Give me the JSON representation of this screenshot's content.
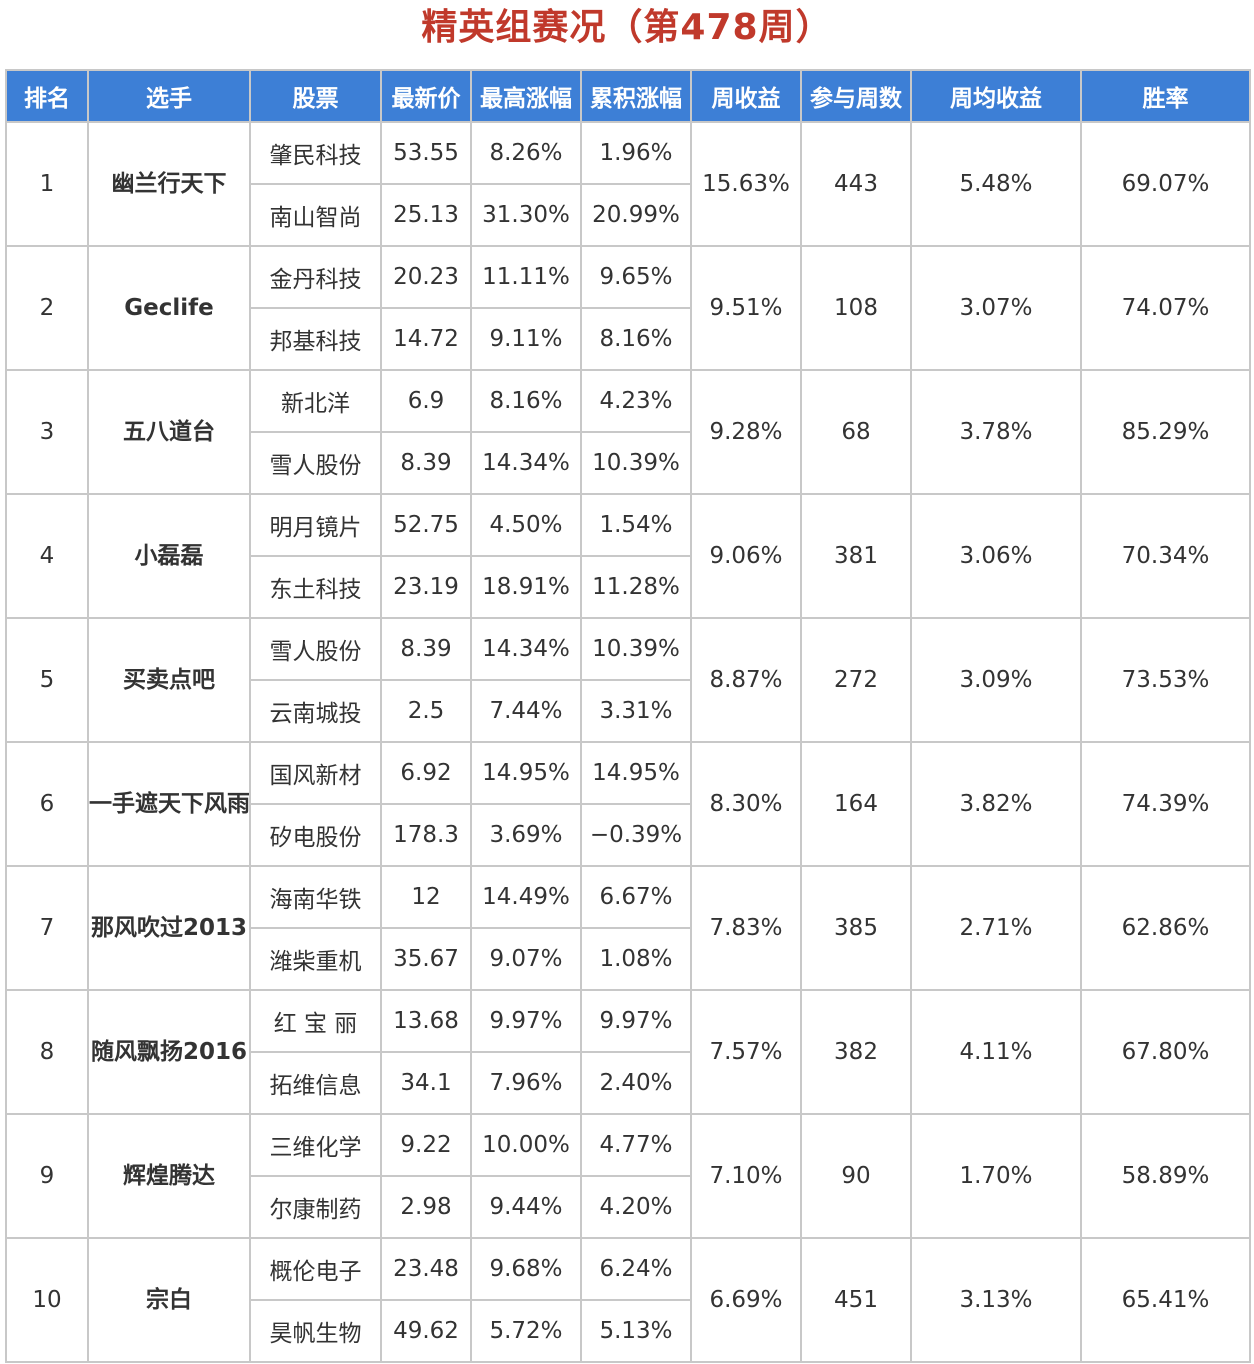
{
  "title": "精英组赛况（第478周）",
  "colors": {
    "title": "#c0392b",
    "header_bg": "#3d7fd6",
    "header_text": "#ffffff",
    "player": "#2e64b8",
    "stock": "#2e64b8",
    "up": "#d93a3a",
    "down": "#3a7f2e",
    "border": "#c8c8c8"
  },
  "headers": [
    "排名",
    "选手",
    "股票",
    "最新价",
    "最高涨幅",
    "累积涨幅",
    "周收益",
    "参与周数",
    "周均收益",
    "胜率"
  ],
  "rows": [
    {
      "rank": "1",
      "player": "幽兰行天下",
      "stocks": [
        {
          "name": "肇民科技",
          "price": "53.55",
          "max_gain": "8.26%",
          "cum_gain": "1.96%"
        },
        {
          "name": "南山智尚",
          "price": "25.13",
          "max_gain": "31.30%",
          "cum_gain": "20.99%"
        }
      ],
      "weekly_return": "15.63%",
      "weeks": "443",
      "avg_return": "5.48%",
      "win_rate": "69.07%"
    },
    {
      "rank": "2",
      "player": "Geclife",
      "stocks": [
        {
          "name": "金丹科技",
          "price": "20.23",
          "max_gain": "11.11%",
          "cum_gain": "9.65%"
        },
        {
          "name": "邦基科技",
          "price": "14.72",
          "max_gain": "9.11%",
          "cum_gain": "8.16%"
        }
      ],
      "weekly_return": "9.51%",
      "weeks": "108",
      "avg_return": "3.07%",
      "win_rate": "74.07%"
    },
    {
      "rank": "3",
      "player": "五八道台",
      "stocks": [
        {
          "name": "新北洋",
          "price": "6.9",
          "max_gain": "8.16%",
          "cum_gain": "4.23%"
        },
        {
          "name": "雪人股份",
          "price": "8.39",
          "max_gain": "14.34%",
          "cum_gain": "10.39%"
        }
      ],
      "weekly_return": "9.28%",
      "weeks": "68",
      "avg_return": "3.78%",
      "win_rate": "85.29%"
    },
    {
      "rank": "4",
      "player": "小磊磊",
      "stocks": [
        {
          "name": "明月镜片",
          "price": "52.75",
          "max_gain": "4.50%",
          "cum_gain": "1.54%"
        },
        {
          "name": "东土科技",
          "price": "23.19",
          "max_gain": "18.91%",
          "cum_gain": "11.28%"
        }
      ],
      "weekly_return": "9.06%",
      "weeks": "381",
      "avg_return": "3.06%",
      "win_rate": "70.34%"
    },
    {
      "rank": "5",
      "player": "买卖点吧",
      "stocks": [
        {
          "name": "雪人股份",
          "price": "8.39",
          "max_gain": "14.34%",
          "cum_gain": "10.39%"
        },
        {
          "name": "云南城投",
          "price": "2.5",
          "max_gain": "7.44%",
          "cum_gain": "3.31%"
        }
      ],
      "weekly_return": "8.87%",
      "weeks": "272",
      "avg_return": "3.09%",
      "win_rate": "73.53%"
    },
    {
      "rank": "6",
      "player": "一手遮天下风雨",
      "stocks": [
        {
          "name": "国风新材",
          "price": "6.92",
          "max_gain": "14.95%",
          "cum_gain": "14.95%"
        },
        {
          "name": "矽电股份",
          "price": "178.3",
          "max_gain": "3.69%",
          "cum_gain": "−0.39%"
        }
      ],
      "weekly_return": "8.30%",
      "weeks": "164",
      "avg_return": "3.82%",
      "win_rate": "74.39%"
    },
    {
      "rank": "7",
      "player": "那风吹过2013",
      "stocks": [
        {
          "name": "海南华铁",
          "price": "12",
          "max_gain": "14.49%",
          "cum_gain": "6.67%"
        },
        {
          "name": "潍柴重机",
          "price": "35.67",
          "max_gain": "9.07%",
          "cum_gain": "1.08%"
        }
      ],
      "weekly_return": "7.83%",
      "weeks": "385",
      "avg_return": "2.71%",
      "win_rate": "62.86%"
    },
    {
      "rank": "8",
      "player": "随风飘扬2016",
      "stocks": [
        {
          "name": "红 宝 丽",
          "price": "13.68",
          "max_gain": "9.97%",
          "cum_gain": "9.97%"
        },
        {
          "name": "拓维信息",
          "price": "34.1",
          "max_gain": "7.96%",
          "cum_gain": "2.40%"
        }
      ],
      "weekly_return": "7.57%",
      "weeks": "382",
      "avg_return": "4.11%",
      "win_rate": "67.80%"
    },
    {
      "rank": "9",
      "player": "辉煌腾达",
      "stocks": [
        {
          "name": "三维化学",
          "price": "9.22",
          "max_gain": "10.00%",
          "cum_gain": "4.77%"
        },
        {
          "name": "尔康制药",
          "price": "2.98",
          "max_gain": "9.44%",
          "cum_gain": "4.20%"
        }
      ],
      "weekly_return": "7.10%",
      "weeks": "90",
      "avg_return": "1.70%",
      "win_rate": "58.89%"
    },
    {
      "rank": "10",
      "player": "宗白",
      "stocks": [
        {
          "name": "概伦电子",
          "price": "23.48",
          "max_gain": "9.68%",
          "cum_gain": "6.24%"
        },
        {
          "name": "昊帆生物",
          "price": "49.62",
          "max_gain": "5.72%",
          "cum_gain": "5.13%"
        }
      ],
      "weekly_return": "6.69%",
      "weeks": "451",
      "avg_return": "3.13%",
      "win_rate": "65.41%"
    }
  ]
}
